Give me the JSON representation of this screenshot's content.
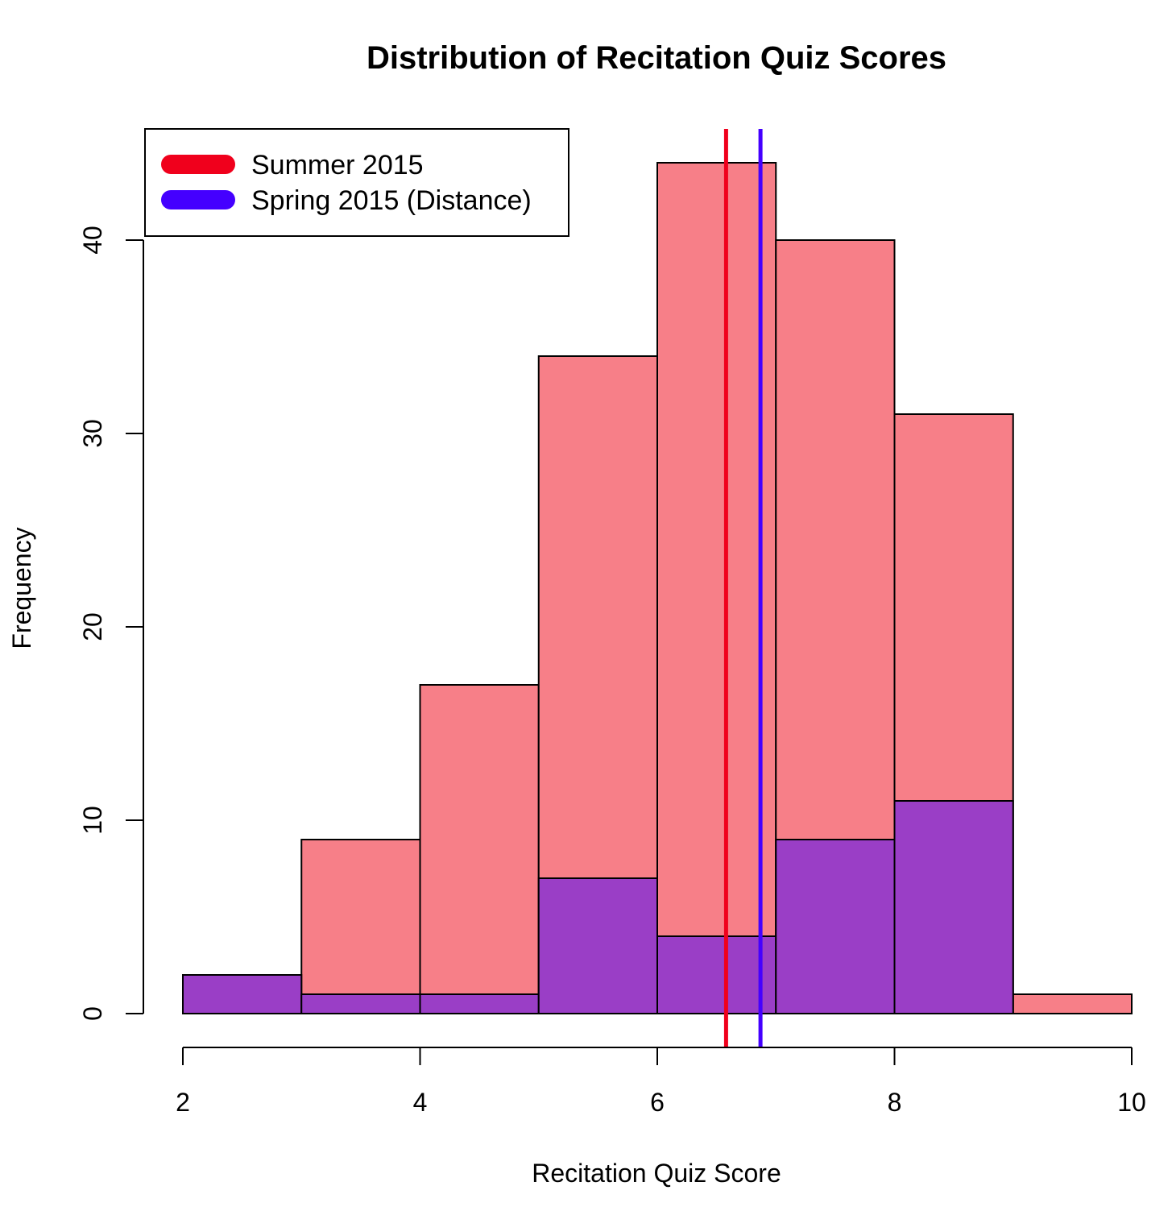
{
  "chart_data": {
    "type": "histogram",
    "title": "Distribution of Recitation Quiz Scores",
    "xlabel": "Recitation Quiz Score",
    "ylabel": "Frequency",
    "xlim": [
      2,
      10
    ],
    "ylim": [
      0,
      45
    ],
    "x_ticks": [
      2,
      4,
      6,
      8,
      10
    ],
    "y_ticks": [
      0,
      10,
      20,
      30,
      40
    ],
    "bin_edges": [
      2,
      3,
      4,
      5,
      6,
      7,
      8,
      9,
      10
    ],
    "series": [
      {
        "name": "Summer 2015",
        "color": "#f77f88",
        "counts": [
          0,
          9,
          17,
          34,
          44,
          40,
          31,
          1
        ],
        "mean": 6.58,
        "mean_line_color": "#f0001c"
      },
      {
        "name": "Spring 2015 (Distance)",
        "color": "#9a3ec6",
        "counts": [
          2,
          1,
          1,
          7,
          4,
          9,
          11,
          0
        ],
        "mean": 6.87,
        "mean_line_color": "#4400ff"
      }
    ],
    "legend": {
      "position": "top-left",
      "entries": [
        "Summer 2015",
        "Spring 2015 (Distance)"
      ],
      "colors": [
        "#f0001c",
        "#4400ff"
      ]
    },
    "grid": false
  }
}
